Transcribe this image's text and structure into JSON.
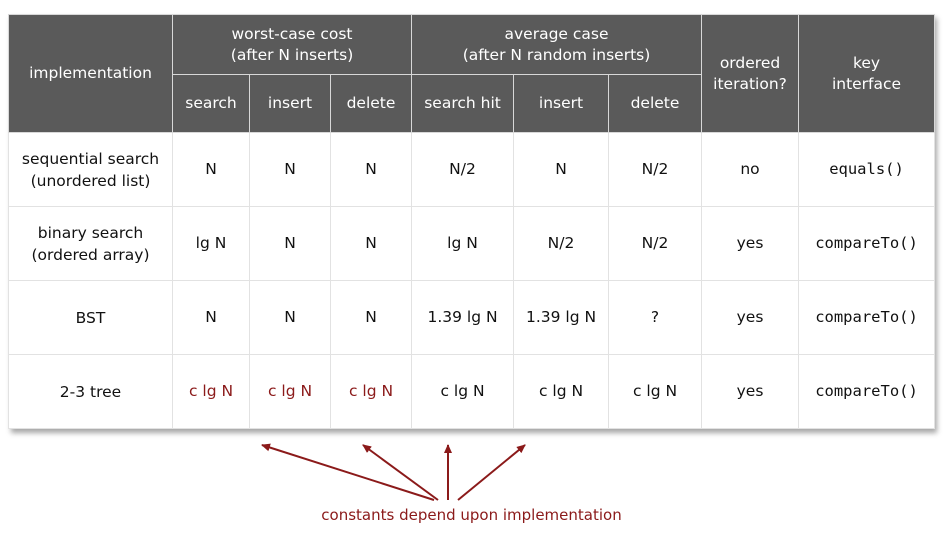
{
  "headers": {
    "implementation": "implementation",
    "worst_case": [
      "worst-case cost",
      "(after N inserts)"
    ],
    "average_case": [
      "average case",
      "(after N random inserts)"
    ],
    "ordered": [
      "ordered",
      "iteration?"
    ],
    "key": [
      "key",
      "interface"
    ],
    "sub": [
      "search",
      "insert",
      "delete",
      "search hit",
      "insert",
      "delete"
    ]
  },
  "rows": [
    {
      "impl": [
        "sequential search",
        "(unordered list)"
      ],
      "cells": [
        "N",
        "N",
        "N",
        "N/2",
        "N",
        "N/2"
      ],
      "ordered": "no",
      "key": "equals()"
    },
    {
      "impl": [
        "binary search",
        "(ordered array)"
      ],
      "cells": [
        "lg N",
        "N",
        "N",
        "lg N",
        "N/2",
        "N/2"
      ],
      "ordered": "yes",
      "key": "compareTo()"
    },
    {
      "impl": [
        "BST"
      ],
      "cells": [
        "N",
        "N",
        "N",
        "1.39 lg N",
        "1.39 lg N",
        "?"
      ],
      "ordered": "yes",
      "key": "compareTo()"
    },
    {
      "impl": [
        "2-3 tree"
      ],
      "cells": [
        "c lg N",
        "c lg N",
        "c lg N",
        "c lg N",
        "c lg N",
        "c lg N"
      ],
      "ordered": "yes",
      "key": "compareTo()"
    }
  ],
  "annotation": "constants depend upon implementation",
  "colors": {
    "header_bg": "#5a5a5a",
    "header_text": "#ffffff",
    "accent_red": "#8b1a1a"
  }
}
